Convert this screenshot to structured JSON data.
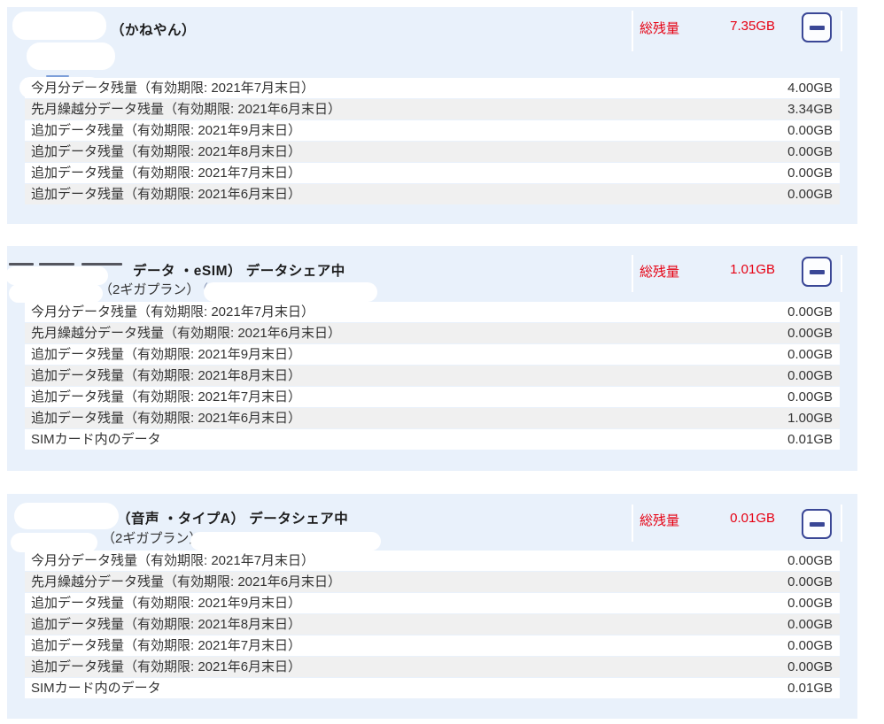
{
  "colors": {
    "panel_background": "#e9f1fb",
    "row_alternate": "#f0f0f0",
    "row_text": "#333333",
    "total_red": "#e60012",
    "button_navy": "#3a4796"
  },
  "icons": {
    "collapse": "minus-icon"
  },
  "panels": [
    {
      "title": "（かねやん）",
      "total_label": "総残量",
      "total_value": "7.35GB",
      "rows": [
        {
          "label": "今月分データ残量（有効期限: 2021年7月末日）",
          "value": "4.00GB"
        },
        {
          "label": "先月繰越分データ残量（有効期限: 2021年6月末日）",
          "value": "3.34GB"
        },
        {
          "label": "追加データ残量（有効期限: 2021年9月末日）",
          "value": "0.00GB"
        },
        {
          "label": "追加データ残量（有効期限: 2021年8月末日）",
          "value": "0.00GB"
        },
        {
          "label": "追加データ残量（有効期限: 2021年7月末日）",
          "value": "0.00GB"
        },
        {
          "label": "追加データ残量（有効期限: 2021年6月末日）",
          "value": "0.00GB"
        }
      ]
    },
    {
      "title": "データ ・eSIM） データシェア中",
      "subtitle": "（2ギガプラン）",
      "subtitle_suffix": "（",
      "total_label": "総残量",
      "total_value": "1.01GB",
      "rows": [
        {
          "label": "今月分データ残量（有効期限: 2021年7月末日）",
          "value": "0.00GB"
        },
        {
          "label": "先月繰越分データ残量（有効期限: 2021年6月末日）",
          "value": "0.00GB"
        },
        {
          "label": "追加データ残量（有効期限: 2021年9月末日）",
          "value": "0.00GB"
        },
        {
          "label": "追加データ残量（有効期限: 2021年8月末日）",
          "value": "0.00GB"
        },
        {
          "label": "追加データ残量（有効期限: 2021年7月末日）",
          "value": "0.00GB"
        },
        {
          "label": "追加データ残量（有効期限: 2021年6月末日）",
          "value": "1.00GB"
        },
        {
          "label": "SIMカード内のデータ",
          "value": "0.01GB"
        }
      ]
    },
    {
      "title": "（音声 ・タイプA） データシェア中",
      "subtitle": "（2ギガプラン）",
      "total_label": "総残量",
      "total_value": "0.01GB",
      "rows": [
        {
          "label": "今月分データ残量（有効期限: 2021年7月末日）",
          "value": "0.00GB"
        },
        {
          "label": "先月繰越分データ残量（有効期限: 2021年6月末日）",
          "value": "0.00GB"
        },
        {
          "label": "追加データ残量（有効期限: 2021年9月末日）",
          "value": "0.00GB"
        },
        {
          "label": "追加データ残量（有効期限: 2021年8月末日）",
          "value": "0.00GB"
        },
        {
          "label": "追加データ残量（有効期限: 2021年7月末日）",
          "value": "0.00GB"
        },
        {
          "label": "追加データ残量（有効期限: 2021年6月末日）",
          "value": "0.00GB"
        },
        {
          "label": "SIMカード内のデータ",
          "value": "0.01GB"
        }
      ]
    }
  ]
}
